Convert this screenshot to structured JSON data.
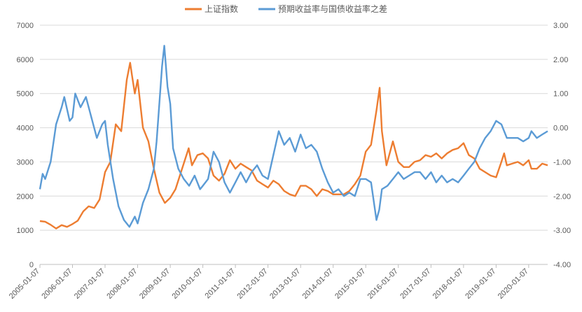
{
  "chart_data": {
    "type": "line",
    "title": "",
    "legend": {
      "position": "top",
      "entries": [
        "上证指数",
        "预期收益率与国债收益率之差"
      ]
    },
    "grid": true,
    "x_categories": [
      "2005-01-07",
      "2006-01-07",
      "2007-01-07",
      "2008-01-07",
      "2009-01-07",
      "2010-01-07",
      "2011-01-07",
      "2012-01-07",
      "2013-01-07",
      "2014-01-07",
      "2015-01-07",
      "2016-01-07",
      "2017-01-07",
      "2018-01-07",
      "2019-01-07",
      "2020-01-07"
    ],
    "x_range": [
      "2005-01-07",
      "2020-08-07"
    ],
    "y_left": {
      "ticks": [
        "0",
        "1000",
        "2000",
        "3000",
        "4000",
        "5000",
        "6000",
        "7000"
      ],
      "ylim": [
        0,
        7000
      ]
    },
    "y_right": {
      "ticks": [
        "-4.00",
        "-3.00",
        "-2.00",
        "-1.00",
        "0.00",
        "1.00",
        "2.00",
        "3.00"
      ],
      "ylim": [
        -4,
        3
      ]
    },
    "series": [
      {
        "name": "上证指数",
        "axis": "left",
        "color": "#ED7D31",
        "points": [
          [
            "2005-01-07",
            1270
          ],
          [
            "2005-03-07",
            1250
          ],
          [
            "2005-05-07",
            1160
          ],
          [
            "2005-07-07",
            1050
          ],
          [
            "2005-09-07",
            1150
          ],
          [
            "2005-11-07",
            1100
          ],
          [
            "2006-01-07",
            1180
          ],
          [
            "2006-03-07",
            1280
          ],
          [
            "2006-05-07",
            1550
          ],
          [
            "2006-07-07",
            1700
          ],
          [
            "2006-09-07",
            1650
          ],
          [
            "2006-11-07",
            1900
          ],
          [
            "2007-01-07",
            2700
          ],
          [
            "2007-03-07",
            3000
          ],
          [
            "2007-05-07",
            4100
          ],
          [
            "2007-07-07",
            3900
          ],
          [
            "2007-09-07",
            5400
          ],
          [
            "2007-10-15",
            5900
          ],
          [
            "2007-11-07",
            5500
          ],
          [
            "2007-12-07",
            5000
          ],
          [
            "2008-01-07",
            5400
          ],
          [
            "2008-03-07",
            4000
          ],
          [
            "2008-05-07",
            3600
          ],
          [
            "2008-07-07",
            2800
          ],
          [
            "2008-09-07",
            2100
          ],
          [
            "2008-11-07",
            1800
          ],
          [
            "2009-01-07",
            1950
          ],
          [
            "2009-03-07",
            2200
          ],
          [
            "2009-05-07",
            2700
          ],
          [
            "2009-08-01",
            3400
          ],
          [
            "2009-09-07",
            2900
          ],
          [
            "2009-11-07",
            3200
          ],
          [
            "2010-01-07",
            3250
          ],
          [
            "2010-03-07",
            3100
          ],
          [
            "2010-05-07",
            2600
          ],
          [
            "2010-07-07",
            2450
          ],
          [
            "2010-09-07",
            2650
          ],
          [
            "2010-11-07",
            3050
          ],
          [
            "2011-01-07",
            2800
          ],
          [
            "2011-03-07",
            2950
          ],
          [
            "2011-05-07",
            2850
          ],
          [
            "2011-07-07",
            2750
          ],
          [
            "2011-09-07",
            2450
          ],
          [
            "2011-11-07",
            2350
          ],
          [
            "2012-01-07",
            2250
          ],
          [
            "2012-03-07",
            2450
          ],
          [
            "2012-05-07",
            2350
          ],
          [
            "2012-07-07",
            2150
          ],
          [
            "2012-09-07",
            2050
          ],
          [
            "2012-11-07",
            2000
          ],
          [
            "2013-01-07",
            2300
          ],
          [
            "2013-03-07",
            2300
          ],
          [
            "2013-05-07",
            2200
          ],
          [
            "2013-07-07",
            2000
          ],
          [
            "2013-09-07",
            2200
          ],
          [
            "2013-11-07",
            2150
          ],
          [
            "2014-01-07",
            2050
          ],
          [
            "2014-03-07",
            2050
          ],
          [
            "2014-05-07",
            2050
          ],
          [
            "2014-07-07",
            2150
          ],
          [
            "2014-09-07",
            2350
          ],
          [
            "2014-11-07",
            2600
          ],
          [
            "2015-01-07",
            3300
          ],
          [
            "2015-03-07",
            3500
          ],
          [
            "2015-05-07",
            4500
          ],
          [
            "2015-06-12",
            5170
          ],
          [
            "2015-07-07",
            3900
          ],
          [
            "2015-08-27",
            2900
          ],
          [
            "2015-11-07",
            3600
          ],
          [
            "2016-01-07",
            3000
          ],
          [
            "2016-03-07",
            2850
          ],
          [
            "2016-05-07",
            2850
          ],
          [
            "2016-07-07",
            3000
          ],
          [
            "2016-09-07",
            3050
          ],
          [
            "2016-11-07",
            3200
          ],
          [
            "2017-01-07",
            3150
          ],
          [
            "2017-03-07",
            3250
          ],
          [
            "2017-05-07",
            3100
          ],
          [
            "2017-07-07",
            3250
          ],
          [
            "2017-09-07",
            3350
          ],
          [
            "2017-11-07",
            3400
          ],
          [
            "2018-01-07",
            3550
          ],
          [
            "2018-03-07",
            3200
          ],
          [
            "2018-05-07",
            3100
          ],
          [
            "2018-07-07",
            2800
          ],
          [
            "2018-09-07",
            2700
          ],
          [
            "2018-11-07",
            2600
          ],
          [
            "2019-01-07",
            2550
          ],
          [
            "2019-03-07",
            3000
          ],
          [
            "2019-04-07",
            3250
          ],
          [
            "2019-05-07",
            2900
          ],
          [
            "2019-07-07",
            2950
          ],
          [
            "2019-09-07",
            3000
          ],
          [
            "2019-11-07",
            2900
          ],
          [
            "2020-01-07",
            3050
          ],
          [
            "2020-02-07",
            2800
          ],
          [
            "2020-04-07",
            2800
          ],
          [
            "2020-06-07",
            2950
          ],
          [
            "2020-08-07",
            2900
          ]
        ]
      },
      {
        "name": "预期收益率与国债收益率之差",
        "axis": "right",
        "color": "#5B9BD5",
        "points": [
          [
            "2005-01-07",
            -1.8
          ],
          [
            "2005-02-07",
            -1.35
          ],
          [
            "2005-03-07",
            -1.5
          ],
          [
            "2005-05-07",
            -1.0
          ],
          [
            "2005-07-07",
            0.1
          ],
          [
            "2005-09-07",
            0.6
          ],
          [
            "2005-10-07",
            0.9
          ],
          [
            "2005-12-07",
            0.2
          ],
          [
            "2006-01-07",
            0.3
          ],
          [
            "2006-02-07",
            1.0
          ],
          [
            "2006-04-07",
            0.6
          ],
          [
            "2006-06-07",
            0.9
          ],
          [
            "2006-08-07",
            0.3
          ],
          [
            "2006-10-07",
            -0.3
          ],
          [
            "2006-12-07",
            0.1
          ],
          [
            "2007-01-07",
            0.2
          ],
          [
            "2007-02-07",
            -0.5
          ],
          [
            "2007-04-07",
            -1.5
          ],
          [
            "2007-06-07",
            -2.3
          ],
          [
            "2007-08-07",
            -2.7
          ],
          [
            "2007-10-07",
            -2.9
          ],
          [
            "2007-12-07",
            -2.6
          ],
          [
            "2008-01-07",
            -2.8
          ],
          [
            "2008-03-07",
            -2.2
          ],
          [
            "2008-05-07",
            -1.8
          ],
          [
            "2008-07-07",
            -1.2
          ],
          [
            "2008-08-07",
            -0.4
          ],
          [
            "2008-10-07",
            1.8
          ],
          [
            "2008-11-01",
            2.4
          ],
          [
            "2008-12-07",
            1.2
          ],
          [
            "2009-01-07",
            0.7
          ],
          [
            "2009-02-07",
            -0.6
          ],
          [
            "2009-04-07",
            -1.2
          ],
          [
            "2009-06-07",
            -1.5
          ],
          [
            "2009-08-07",
            -1.7
          ],
          [
            "2009-10-07",
            -1.4
          ],
          [
            "2009-12-07",
            -1.8
          ],
          [
            "2010-01-07",
            -1.7
          ],
          [
            "2010-03-07",
            -1.5
          ],
          [
            "2010-05-07",
            -0.7
          ],
          [
            "2010-07-07",
            -1.0
          ],
          [
            "2010-09-07",
            -1.6
          ],
          [
            "2010-11-07",
            -1.9
          ],
          [
            "2011-01-07",
            -1.6
          ],
          [
            "2011-03-07",
            -1.3
          ],
          [
            "2011-05-07",
            -1.6
          ],
          [
            "2011-07-07",
            -1.3
          ],
          [
            "2011-09-07",
            -1.1
          ],
          [
            "2011-11-07",
            -1.4
          ],
          [
            "2012-01-07",
            -1.5
          ],
          [
            "2012-03-07",
            -0.8
          ],
          [
            "2012-05-07",
            -0.1
          ],
          [
            "2012-07-07",
            -0.5
          ],
          [
            "2012-09-07",
            -0.3
          ],
          [
            "2012-11-07",
            -0.7
          ],
          [
            "2013-01-07",
            -0.2
          ],
          [
            "2013-03-07",
            -0.6
          ],
          [
            "2013-05-07",
            -0.5
          ],
          [
            "2013-07-07",
            -0.7
          ],
          [
            "2013-09-07",
            -1.2
          ],
          [
            "2013-11-07",
            -1.6
          ],
          [
            "2014-01-07",
            -1.9
          ],
          [
            "2014-03-07",
            -1.8
          ],
          [
            "2014-05-07",
            -2.0
          ],
          [
            "2014-07-07",
            -1.9
          ],
          [
            "2014-09-07",
            -2.0
          ],
          [
            "2014-11-07",
            -1.5
          ],
          [
            "2015-01-07",
            -1.5
          ],
          [
            "2015-03-07",
            -1.6
          ],
          [
            "2015-05-07",
            -2.7
          ],
          [
            "2015-06-07",
            -2.4
          ],
          [
            "2015-07-07",
            -1.8
          ],
          [
            "2015-09-07",
            -1.7
          ],
          [
            "2015-11-07",
            -1.5
          ],
          [
            "2016-01-07",
            -1.3
          ],
          [
            "2016-03-07",
            -1.5
          ],
          [
            "2016-05-07",
            -1.4
          ],
          [
            "2016-07-07",
            -1.3
          ],
          [
            "2016-09-07",
            -1.3
          ],
          [
            "2016-11-07",
            -1.5
          ],
          [
            "2017-01-07",
            -1.3
          ],
          [
            "2017-03-07",
            -1.6
          ],
          [
            "2017-05-07",
            -1.4
          ],
          [
            "2017-07-07",
            -1.6
          ],
          [
            "2017-09-07",
            -1.5
          ],
          [
            "2017-11-07",
            -1.6
          ],
          [
            "2018-01-07",
            -1.4
          ],
          [
            "2018-03-07",
            -1.2
          ],
          [
            "2018-05-07",
            -1.0
          ],
          [
            "2018-07-07",
            -0.6
          ],
          [
            "2018-09-07",
            -0.3
          ],
          [
            "2018-11-07",
            -0.1
          ],
          [
            "2019-01-07",
            0.2
          ],
          [
            "2019-03-07",
            0.1
          ],
          [
            "2019-05-07",
            -0.3
          ],
          [
            "2019-07-07",
            -0.3
          ],
          [
            "2019-09-07",
            -0.3
          ],
          [
            "2019-11-07",
            -0.4
          ],
          [
            "2020-01-07",
            -0.3
          ],
          [
            "2020-02-07",
            -0.1
          ],
          [
            "2020-04-07",
            -0.3
          ],
          [
            "2020-06-07",
            -0.2
          ],
          [
            "2020-08-07",
            -0.1
          ]
        ]
      }
    ]
  }
}
